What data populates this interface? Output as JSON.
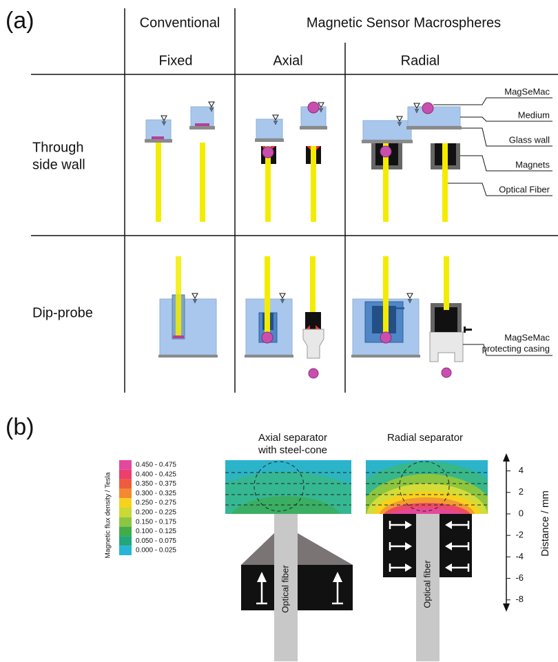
{
  "panel_a": {
    "label": "(a)",
    "header": {
      "conventional": "Conventional",
      "msm": "Magnetic Sensor Macrospheres",
      "fixed": "Fixed",
      "axial": "Axial",
      "radial": "Radial"
    },
    "rows": [
      {
        "label_lines": [
          "Through",
          "side wall"
        ]
      },
      {
        "label_lines": [
          "Dip-probe"
        ]
      }
    ],
    "callouts": [
      "MagSeMac",
      "Medium",
      "Glass wall",
      "Magnets",
      "Optical Fiber"
    ],
    "casing_callout": [
      "MagSeMac",
      "protecting casing"
    ]
  },
  "panel_b": {
    "label": "(b)",
    "legend": {
      "title": "Magnetic flux density / Tesla",
      "items": [
        {
          "label": "0.450 - 0.475",
          "color": "#e4489c"
        },
        {
          "label": "0.400 - 0.425",
          "color": "#ec3f6c"
        },
        {
          "label": "0.350 - 0.375",
          "color": "#ef5b3d"
        },
        {
          "label": "0.300 - 0.325",
          "color": "#f48a30"
        },
        {
          "label": "0.250 - 0.275",
          "color": "#f6d21d"
        },
        {
          "label": "0.200 - 0.225",
          "color": "#c9d935"
        },
        {
          "label": "0.150 - 0.175",
          "color": "#8cc640"
        },
        {
          "label": "0.100 - 0.125",
          "color": "#40ad4a"
        },
        {
          "label": "0.050 - 0.075",
          "color": "#20a77b"
        },
        {
          "label": "0.000 - 0.025",
          "color": "#28b4d7"
        }
      ]
    },
    "axial_title": [
      "Axial separator",
      "with steel-cone"
    ],
    "radial_title": [
      "Radial separator"
    ],
    "fiber_labels": [
      "Optical fiber",
      "Optical fiber"
    ],
    "axis": {
      "label": "Distance / mm",
      "ticks": [
        4,
        2,
        0,
        -2,
        -4,
        -6,
        -8
      ]
    }
  }
}
